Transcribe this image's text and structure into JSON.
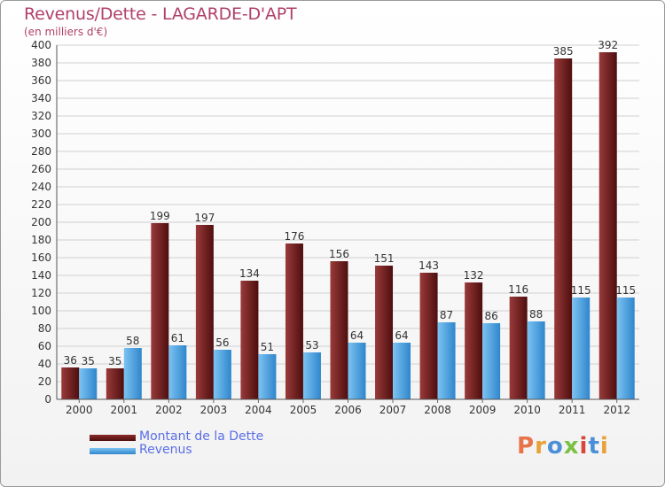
{
  "header": {
    "title": "Revenus/Dette - LAGARDE-D'APT",
    "subtitle": "(en milliers d'€)"
  },
  "legend": {
    "debt_label": "Montant de la Dette",
    "revenue_label": "Revenus"
  },
  "logo": {
    "text": "Proxiti",
    "colors": [
      "#e8734a",
      "#e8a23a",
      "#4a8fd8",
      "#7ac143",
      "#d8453a",
      "#4a8fd8",
      "#e8a23a"
    ]
  },
  "colors": {
    "debt": "#7a1c1c",
    "revenue": "#3d9be0",
    "title": "#b0406a",
    "legend_text": "#5a6ee6"
  },
  "chart_data": {
    "type": "bar",
    "title": "Revenus/Dette - LAGARDE-D'APT",
    "subtitle": "(en milliers d'€)",
    "categories": [
      "2000",
      "2001",
      "2002",
      "2003",
      "2004",
      "2005",
      "2006",
      "2007",
      "2008",
      "2009",
      "2010",
      "2011",
      "2012"
    ],
    "series": [
      {
        "name": "Montant de la Dette",
        "values": [
          36,
          35,
          199,
          197,
          134,
          176,
          156,
          151,
          143,
          132,
          116,
          385,
          392
        ]
      },
      {
        "name": "Revenus",
        "values": [
          35,
          58,
          61,
          56,
          51,
          53,
          64,
          64,
          87,
          86,
          88,
          115,
          115
        ]
      }
    ],
    "ylim": [
      0,
      400
    ],
    "yticks": [
      0,
      20,
      40,
      60,
      80,
      100,
      120,
      140,
      160,
      180,
      200,
      220,
      240,
      260,
      280,
      300,
      320,
      340,
      360,
      380,
      400
    ],
    "grid": true,
    "legend_position": "bottom-left"
  }
}
